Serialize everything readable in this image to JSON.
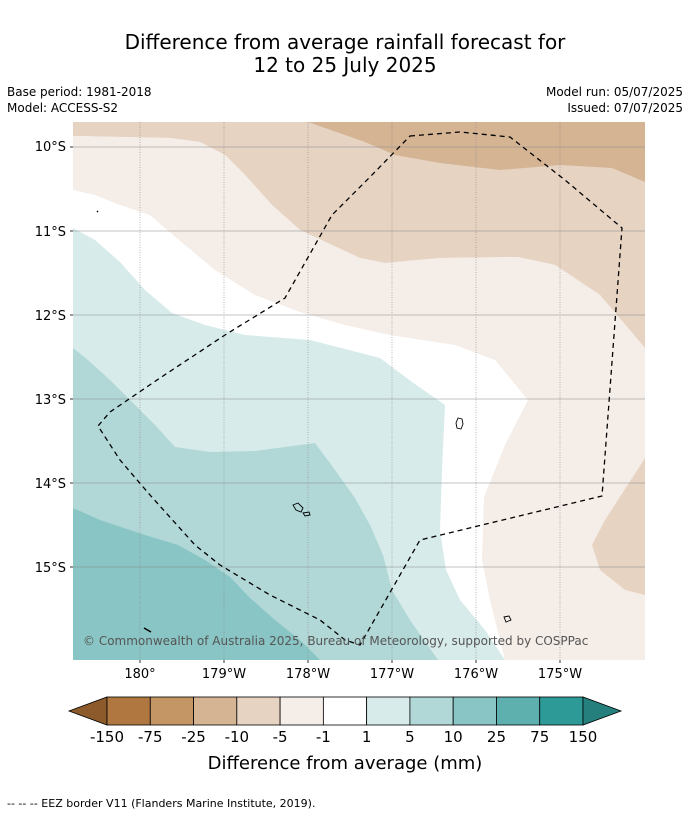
{
  "title_line1": "Difference from average rainfall forecast for",
  "title_line2": "12 to 25 July 2025",
  "base_period": "Base period: 1981-2018",
  "model": "Model: ACCESS-S2",
  "model_run": "Model run: 05/07/2025",
  "issued": "Issued: 07/07/2025",
  "lat_ticks": [
    "10°S",
    "11°S",
    "12°S",
    "13°S",
    "14°S",
    "15°S"
  ],
  "lon_ticks": [
    "180°",
    "179°W",
    "178°W",
    "177°W",
    "176°W",
    "175°W"
  ],
  "copyright": "© Commonwealth of Australia 2025, Bureau of Meteorology, supported by COSPPac",
  "colorbar": {
    "title": "Difference from average (mm)",
    "labels": [
      "-150",
      "-75",
      "-25",
      "-10",
      "-5",
      "-1",
      "1",
      "5",
      "10",
      "25",
      "75",
      "150"
    ],
    "colors": [
      "#8c5a2b",
      "#b07840",
      "#c49565",
      "#d5b494",
      "#e6d3c2",
      "#f5ede8",
      "#ffffff",
      "#d7ebea",
      "#b1d8d7",
      "#89c5c4",
      "#5eb0af",
      "#2e9a98",
      "#257f7d"
    ]
  },
  "footer": "-- -- -- EEZ border V11 (Flanders Marine Institute, 2019)."
}
